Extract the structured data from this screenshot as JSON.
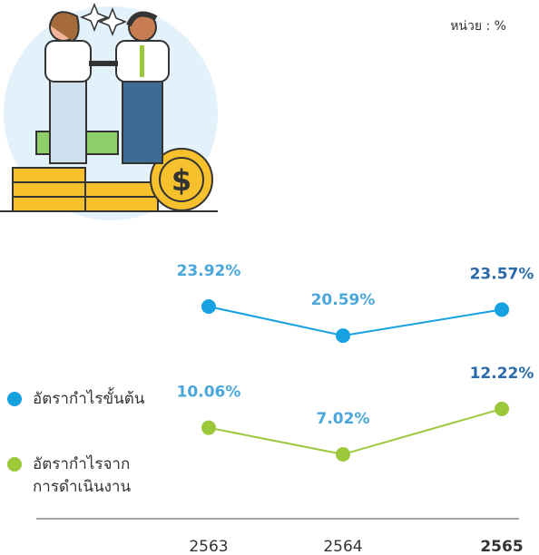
{
  "unit_label": "หน่วย : %",
  "chart_data": {
    "type": "line",
    "categories": [
      "2563",
      "2564",
      "2565"
    ],
    "series": [
      {
        "name": "อัตรากำไรขั้นต้น",
        "color": "#16a1e0",
        "values": [
          23.92,
          20.59,
          23.57
        ],
        "value_labels": [
          "23.92%",
          "20.59%",
          "23.57%"
        ]
      },
      {
        "name": "อัตรากำไรจากการดำเนินงาน",
        "color": "#9cc83c",
        "values": [
          10.06,
          7.02,
          12.22
        ],
        "value_labels": [
          "10.06%",
          "7.02%",
          "12.22%"
        ]
      }
    ]
  }
}
